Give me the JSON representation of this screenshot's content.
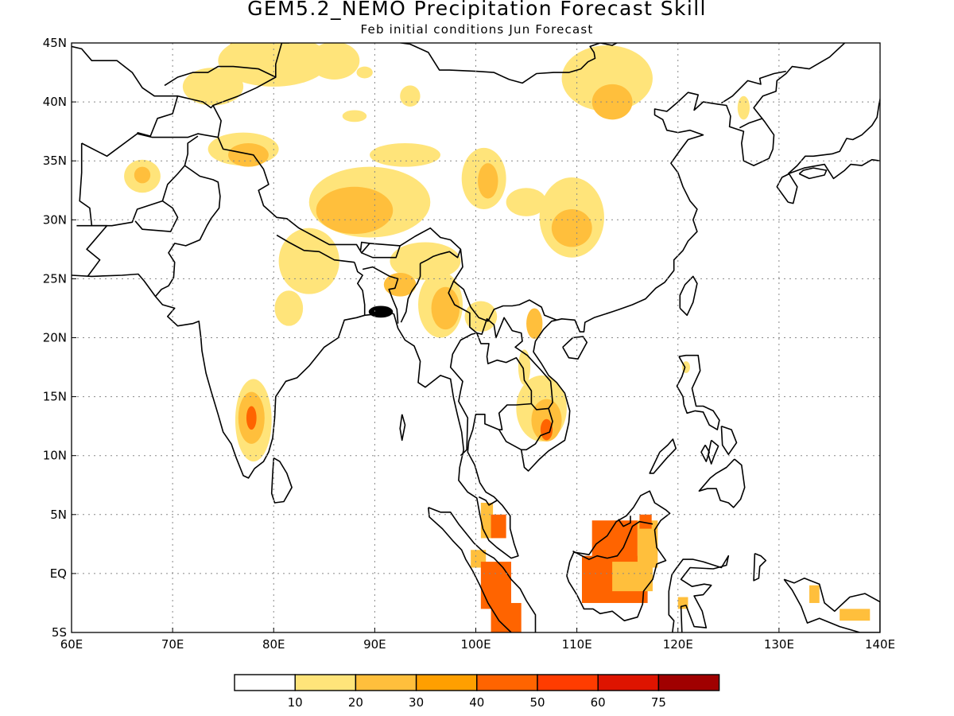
{
  "title": "GEM5.2_NEMO Precipitation Forecast Skill",
  "subtitle": "Feb initial conditions  Jun Forecast",
  "map": {
    "lon_range": [
      60,
      140
    ],
    "lat_range": [
      -5,
      45
    ],
    "lon_ticks": [
      "60E",
      "70E",
      "80E",
      "90E",
      "100E",
      "110E",
      "120E",
      "130E",
      "140E"
    ],
    "lat_ticks": [
      "45N",
      "40N",
      "35N",
      "30N",
      "25N",
      "20N",
      "15N",
      "10N",
      "5N",
      "EQ",
      "5S"
    ],
    "gridlines": "dotted"
  },
  "legend": {
    "labels": [
      "10",
      "20",
      "30",
      "40",
      "50",
      "60",
      "75"
    ],
    "colors": [
      "#ffffff",
      "#ffe47a",
      "#ffbf3c",
      "#ff9f00",
      "#ff6400",
      "#ff3c00",
      "#de1400",
      "#a00000"
    ]
  },
  "skill_regions": [
    {
      "level": 2,
      "lon": 79.5,
      "lat": 44.5,
      "rx": 4.0,
      "ry": 1.3
    },
    {
      "level": 3,
      "lon": 80,
      "lat": 44.5,
      "rx": 2.0,
      "ry": 0.7
    },
    {
      "level": 1,
      "lon": 80,
      "lat": 43.5,
      "rx": 5.5,
      "ry": 2.2
    },
    {
      "level": 1,
      "lon": 86,
      "lat": 43.5,
      "rx": 2.5,
      "ry": 1.6
    },
    {
      "level": 1,
      "lon": 74,
      "lat": 41.3,
      "rx": 3.0,
      "ry": 1.6
    },
    {
      "level": 1,
      "lon": 89,
      "lat": 42.5,
      "rx": 0.8,
      "ry": 0.5
    },
    {
      "level": 1,
      "lon": 93.5,
      "lat": 40.5,
      "rx": 1.0,
      "ry": 0.9
    },
    {
      "level": 1,
      "lon": 88,
      "lat": 38.8,
      "rx": 1.2,
      "ry": 0.5
    },
    {
      "level": 1,
      "lon": 77,
      "lat": 36,
      "rx": 3.5,
      "ry": 1.4
    },
    {
      "level": 2,
      "lon": 77.5,
      "lat": 35.5,
      "rx": 2.0,
      "ry": 1.0
    },
    {
      "level": 1,
      "lon": 67,
      "lat": 33.7,
      "rx": 1.8,
      "ry": 1.4
    },
    {
      "level": 2,
      "lon": 67,
      "lat": 33.8,
      "rx": 0.8,
      "ry": 0.7
    },
    {
      "level": 1,
      "lon": 89.5,
      "lat": 31.5,
      "rx": 6.0,
      "ry": 3.0
    },
    {
      "level": 2,
      "lon": 88,
      "lat": 30.8,
      "rx": 3.8,
      "ry": 2.0
    },
    {
      "level": 1,
      "lon": 93,
      "lat": 35.5,
      "rx": 3.5,
      "ry": 1.0
    },
    {
      "level": 1,
      "lon": 83.5,
      "lat": 26.5,
      "rx": 3.0,
      "ry": 2.8
    },
    {
      "level": 1,
      "lon": 95,
      "lat": 26.5,
      "rx": 3.5,
      "ry": 1.6
    },
    {
      "level": 2,
      "lon": 92.5,
      "lat": 24.5,
      "rx": 1.6,
      "ry": 1.0
    },
    {
      "level": 1,
      "lon": 96.5,
      "lat": 22.8,
      "rx": 2.2,
      "ry": 2.8
    },
    {
      "level": 2,
      "lon": 97,
      "lat": 22.5,
      "rx": 1.4,
      "ry": 1.8
    },
    {
      "level": 1,
      "lon": 100.5,
      "lat": 21.8,
      "rx": 1.6,
      "ry": 1.3
    },
    {
      "level": 1,
      "lon": 100.8,
      "lat": 33.5,
      "rx": 2.2,
      "ry": 2.6
    },
    {
      "level": 2,
      "lon": 101.2,
      "lat": 33.3,
      "rx": 1.0,
      "ry": 1.5
    },
    {
      "level": 1,
      "lon": 109.5,
      "lat": 30.2,
      "rx": 3.2,
      "ry": 3.4
    },
    {
      "level": 2,
      "lon": 109.5,
      "lat": 29.3,
      "rx": 2.0,
      "ry": 1.6
    },
    {
      "level": 1,
      "lon": 105,
      "lat": 31.5,
      "rx": 2.0,
      "ry": 1.2
    },
    {
      "level": 1,
      "lon": 113,
      "lat": 42.0,
      "rx": 4.5,
      "ry": 2.8
    },
    {
      "level": 2,
      "lon": 113.5,
      "lat": 40.0,
      "rx": 2.0,
      "ry": 1.5
    },
    {
      "level": 1,
      "lon": 126.5,
      "lat": 39.5,
      "rx": 0.6,
      "ry": 1.0
    },
    {
      "level": 1,
      "lon": 78,
      "lat": 13.0,
      "rx": 1.8,
      "ry": 3.5
    },
    {
      "level": 2,
      "lon": 77.8,
      "lat": 13.2,
      "rx": 1.3,
      "ry": 2.2
    },
    {
      "level": 4,
      "lon": 77.8,
      "lat": 13.2,
      "rx": 0.5,
      "ry": 1.0
    },
    {
      "level": 1,
      "lon": 81.5,
      "lat": 22.5,
      "rx": 1.4,
      "ry": 1.5
    },
    {
      "level": 1,
      "lon": 106.5,
      "lat": 14.0,
      "rx": 2.5,
      "ry": 2.8
    },
    {
      "level": 2,
      "lon": 107,
      "lat": 13.0,
      "rx": 1.5,
      "ry": 1.8
    },
    {
      "level": 4,
      "lon": 107,
      "lat": 12.2,
      "rx": 0.6,
      "ry": 0.9
    },
    {
      "level": 2,
      "lon": 105.8,
      "lat": 21.2,
      "rx": 0.8,
      "ry": 1.3
    },
    {
      "level": 1,
      "lon": 104.8,
      "lat": 17.5,
      "rx": 0.6,
      "ry": 1.5
    },
    {
      "level": 1,
      "lon": 120.8,
      "lat": 17.5,
      "rx": 0.4,
      "ry": 0.5
    }
  ],
  "skill_blocks": [
    {
      "level": 2,
      "lon0": 100.5,
      "lat0": 3.0,
      "lon1": 101.7,
      "lat1": 6.0
    },
    {
      "level": 4,
      "lon0": 101.5,
      "lat0": 3.0,
      "lon1": 103.0,
      "lat1": 5.0
    },
    {
      "level": 2,
      "lon0": 99.5,
      "lat0": 0.5,
      "lon1": 101.0,
      "lat1": 2.0
    },
    {
      "level": 4,
      "lon0": 100.5,
      "lat0": -3.0,
      "lon1": 103.5,
      "lat1": 1.0
    },
    {
      "level": 4,
      "lon0": 101.5,
      "lat0": -5.0,
      "lon1": 104.5,
      "lat1": -2.5
    },
    {
      "level": 4,
      "lon0": 110.5,
      "lat0": -2.5,
      "lon1": 117.0,
      "lat1": 1.5
    },
    {
      "level": 4,
      "lon0": 111.5,
      "lat0": 1.0,
      "lon1": 116.0,
      "lat1": 4.5
    },
    {
      "level": 2,
      "lon0": 113.5,
      "lat0": -1.5,
      "lon1": 117.5,
      "lat1": 1.0
    },
    {
      "level": 2,
      "lon0": 116.0,
      "lat0": 0.5,
      "lon1": 118.0,
      "lat1": 4.5
    },
    {
      "level": 4,
      "lon0": 116.2,
      "lat0": 3.8,
      "lon1": 117.4,
      "lat1": 5.0
    },
    {
      "level": 2,
      "lon0": 120.0,
      "lat0": -3.0,
      "lon1": 121.0,
      "lat1": -2.0
    },
    {
      "level": 2,
      "lon0": 133.0,
      "lat0": -2.5,
      "lon1": 134.0,
      "lat1": -1.0
    },
    {
      "level": 2,
      "lon0": 136.0,
      "lat0": -4.0,
      "lon1": 139.0,
      "lat1": -3.0
    }
  ]
}
